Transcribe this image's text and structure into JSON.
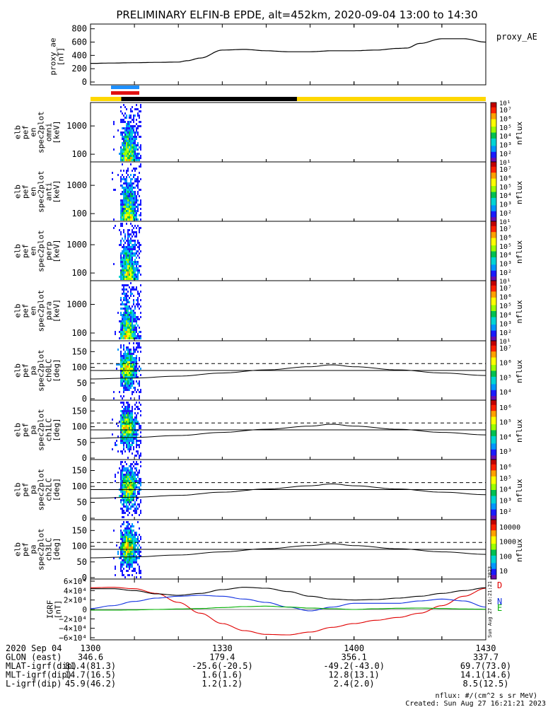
{
  "title": "PRELIMINARY ELFIN-B EPDE, alt=452km, 2020-09-04 13:00 to 14:30",
  "colors": {
    "state_blue": "#1e90ff",
    "state_red": "#e01010",
    "bar_yellow": "#ffd700",
    "bar_black": "#000000",
    "bz_red": "#e00000",
    "bx_blue": "#1030e0",
    "by_green": "#00b000"
  },
  "panels": [
    {
      "ylabel": [
        "proxy_ae",
        "[nT]"
      ],
      "right_label": "proxy_AE"
    },
    {
      "ylabel": [
        "elb",
        "pef",
        "en",
        "spec2plot",
        "omni",
        "[keV]"
      ],
      "unit": "nflux"
    },
    {
      "ylabel": [
        "elb",
        "pef",
        "en",
        "spec2plot",
        "anti",
        "[keV]"
      ],
      "unit": "nflux"
    },
    {
      "ylabel": [
        "elb",
        "pef",
        "en",
        "spec2plot",
        "perp",
        "[keV]"
      ],
      "unit": "nflux"
    },
    {
      "ylabel": [
        "elb",
        "pef",
        "en",
        "spec2plot",
        "para",
        "[keV]"
      ],
      "unit": "nflux"
    },
    {
      "ylabel": [
        "elb",
        "pef",
        "pa",
        "spec2plot",
        "ch0LC",
        "[deg]"
      ],
      "unit": "nflux"
    },
    {
      "ylabel": [
        "elb",
        "pef",
        "pa",
        "spec2plot",
        "ch1LC",
        "[deg]"
      ],
      "unit": "nflux"
    },
    {
      "ylabel": [
        "elb",
        "pef",
        "pa",
        "spec2plot",
        "ch2LC",
        "[deg]"
      ],
      "unit": "nflux"
    },
    {
      "ylabel": [
        "elb",
        "pef",
        "pa",
        "spec2plot",
        "ch3LC",
        "[deg]"
      ],
      "unit": "nflux"
    },
    {
      "ylabel": [
        "IGRF",
        "[nT]"
      ],
      "legend": [
        "D",
        "N",
        "E"
      ],
      "side_text": "Sun Aug 27 16:21:21 2023"
    }
  ],
  "x_ticks": [
    "1300",
    "1330",
    "1400",
    "1430"
  ],
  "ae_ticks": [
    "0",
    "200",
    "400",
    "600",
    "800"
  ],
  "energy_ticks": [
    "100",
    "1000"
  ],
  "pa_ticks": [
    "0",
    "50",
    "100",
    "150"
  ],
  "igrf_ticks": [
    "−6×10⁴",
    "−4×10⁴",
    "−2×10⁴",
    "0",
    "2×10⁴",
    "4×10⁴",
    "6×10⁴"
  ],
  "colorbars": [
    {
      "ticks": [
        "10²",
        "10³",
        "10⁴",
        "10⁵",
        "10⁶",
        "10⁷"
      ],
      "extra_top": "10¹"
    },
    {
      "ticks": [
        "10²",
        "10³",
        "10⁴",
        "10⁵",
        "10⁶",
        "10⁷"
      ],
      "extra_top": "10¹"
    },
    {
      "ticks": [
        "10²",
        "10³",
        "10⁴",
        "10⁵",
        "10⁶",
        "10⁷"
      ],
      "extra_top": "10¹"
    },
    {
      "ticks": [
        "10²",
        "10³",
        "10⁴",
        "10⁵",
        "10⁶",
        "10⁷"
      ],
      "extra_top": "10¹"
    },
    {
      "ticks": [
        "10⁴",
        "10⁵",
        "10⁶",
        "10⁷"
      ],
      "extra_top": "10¹"
    },
    {
      "ticks": [
        "10³",
        "10⁴",
        "10⁵",
        "10⁶"
      ],
      "extra_top": ""
    },
    {
      "ticks": [
        "10²",
        "10³",
        "10⁴",
        "10⁵",
        "10⁶"
      ],
      "extra_top": ""
    },
    {
      "ticks": [
        "10",
        "100",
        "1000",
        "10000"
      ],
      "extra_top": ""
    }
  ],
  "footer_rows": [
    [
      "2020 Sep 04",
      "1300",
      "1330",
      "1400",
      "1430"
    ],
    [
      "GLON (east)",
      "346.6",
      "179.4",
      "356.1",
      "337.7"
    ],
    [
      "MLAT-igrf(dip)",
      "81.4(81.3)",
      "-25.6(-20.5)",
      "-49.2(-43.0)",
      "69.7(73.0)"
    ],
    [
      "MLT-igrf(dip)",
      "14.7(16.5)",
      "1.6(1.6)",
      "12.8(13.1)",
      "14.1(14.6)"
    ],
    [
      "L-igrf(dip)",
      "45.9(46.2)",
      "1.2(1.2)",
      "2.4(2.0)",
      "8.5(12.5)"
    ]
  ],
  "footer_note": [
    "nflux: #/(cm^2 s sr MeV)",
    "Created: Sun Aug 27 16:21:21 2023"
  ],
  "chart_data": [
    {
      "type": "line",
      "title": "PRELIMINARY ELFIN-B EPDE, alt=452km, 2020-09-04 13:00 to 14:30",
      "ylabel": "proxy_ae [nT]",
      "xlabel": "",
      "ylim": [
        0,
        850
      ],
      "x": [
        1300,
        1305,
        1310,
        1315,
        1320,
        1322,
        1325,
        1330,
        1335,
        1340,
        1345,
        1350,
        1355,
        1400,
        1405,
        1410,
        1412,
        1415,
        1420,
        1425,
        1430
      ],
      "series": [
        {
          "name": "proxy_AE",
          "values": [
            280,
            285,
            290,
            295,
            300,
            320,
            360,
            480,
            490,
            470,
            455,
            455,
            470,
            470,
            480,
            505,
            510,
            580,
            650,
            650,
            600
          ]
        }
      ]
    },
    {
      "type": "heatmap",
      "ylabel": "elb pef en spec2plot omni [keV]",
      "yscale": "log",
      "ylim": [
        60,
        6000
      ],
      "colorbar": "nflux",
      "clim": [
        10,
        10000000
      ],
      "data_extent_min": [
        1306,
        1312.5
      ]
    },
    {
      "type": "line",
      "ylabel": "elb pef pa spec2plot ch0LC [deg]",
      "ylim": [
        0,
        180
      ],
      "x": [
        1300,
        1310,
        1320,
        1330,
        1340,
        1350,
        1355,
        1400,
        1410,
        1420,
        1430
      ],
      "series": [
        {
          "values": [
            63,
            66,
            72,
            82,
            92,
            102,
            108,
            102,
            92,
            82,
            74
          ]
        },
        {
          "values": [
            90,
            90,
            90,
            90,
            90,
            90,
            90,
            90,
            90,
            90,
            90
          ]
        },
        {
          "values": [
            112,
            112,
            112,
            112,
            112,
            112,
            112,
            112,
            112,
            112,
            112
          ]
        }
      ]
    },
    {
      "type": "line",
      "ylabel": "IGRF [nT]",
      "ylim": [
        -60000,
        60000
      ],
      "x": [
        1300,
        1305,
        1310,
        1315,
        1320,
        1325,
        1330,
        1335,
        1340,
        1345,
        1350,
        1355,
        1400,
        1405,
        1410,
        1415,
        1420,
        1425,
        1430
      ],
      "series": [
        {
          "name": "D",
          "values": [
            46000,
            47000,
            44000,
            34000,
            15000,
            -8000,
            -30000,
            -45000,
            -53000,
            -54000,
            -48000,
            -38000,
            -30000,
            -23000,
            -17000,
            -8000,
            8000,
            28000,
            45000
          ]
        },
        {
          "name": "N",
          "values": [
            2000,
            8000,
            17000,
            24000,
            28000,
            30000,
            28000,
            22000,
            15000,
            5000,
            -3000,
            5000,
            13000,
            13000,
            13000,
            18000,
            22000,
            18000,
            5000
          ]
        },
        {
          "name": "E",
          "values": [
            -1500,
            -1500,
            -1000,
            0,
            1000,
            2000,
            4000,
            6000,
            7000,
            5000,
            3000,
            1500,
            0,
            1500,
            2500,
            3000,
            2000,
            1000,
            500
          ]
        },
        {
          "values": [
            44000,
            44000,
            40000,
            33000,
            30000,
            34000,
            42000,
            47000,
            45000,
            38000,
            28000,
            22000,
            20000,
            21000,
            24000,
            28000,
            34000,
            40000,
            46000
          ]
        }
      ]
    }
  ]
}
